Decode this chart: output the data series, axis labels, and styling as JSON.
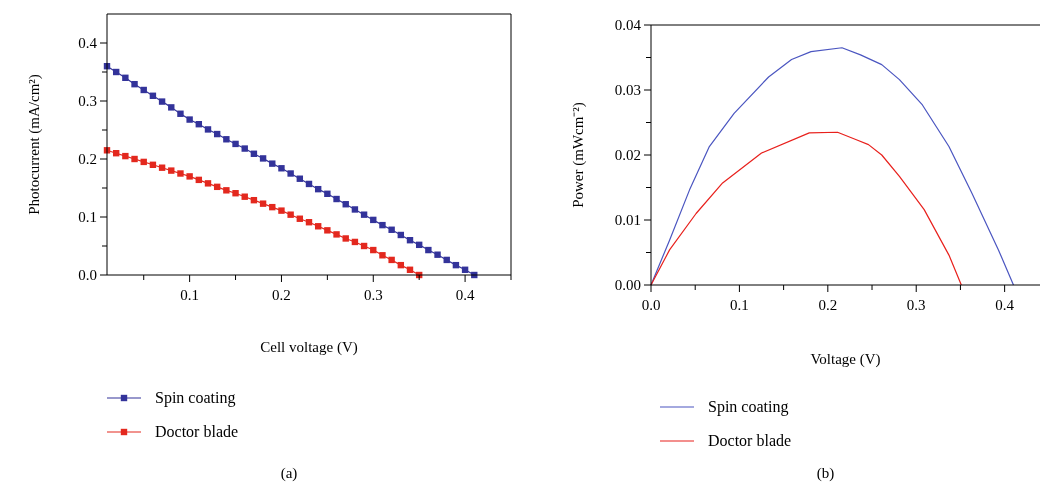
{
  "chart_data": [
    {
      "type": "line",
      "xlabel": "Cell voltage (V)",
      "ylabel": "Photocurrent (mA/cm²)",
      "annotations": [
        "(a)"
      ],
      "legend": "bottom",
      "marker": "square",
      "line_style": "solid",
      "grid": false,
      "xlim": [
        0.01,
        0.45
      ],
      "ylim": [
        0,
        0.45
      ],
      "xticks": [
        {
          "value": 0.05,
          "label": null
        },
        0.1,
        {
          "value": 0.15,
          "label": null
        },
        0.2,
        {
          "value": 0.25,
          "label": null
        },
        0.3,
        {
          "value": 0.35,
          "label": null
        },
        0.4,
        {
          "value": 0.45,
          "label": null
        }
      ],
      "yticks": [
        {
          "value": 0,
          "label": "0.0"
        },
        {
          "value": 0.05,
          "label": null
        },
        0.1,
        {
          "value": 0.15,
          "label": null
        },
        0.2,
        {
          "value": 0.25,
          "label": null
        },
        0.3,
        {
          "value": 0.35,
          "label": null
        },
        0.4
      ],
      "series": [
        {
          "name": "Spin coating",
          "color": "#33339a",
          "x": [
            0.01,
            0.02,
            0.03,
            0.04,
            0.05,
            0.06,
            0.07,
            0.08,
            0.09,
            0.1,
            0.11,
            0.12,
            0.13,
            0.14,
            0.15,
            0.16,
            0.17,
            0.18,
            0.19,
            0.2,
            0.21,
            0.22,
            0.23,
            0.24,
            0.25,
            0.26,
            0.27,
            0.28,
            0.29,
            0.3,
            0.31,
            0.32,
            0.33,
            0.34,
            0.35,
            0.36,
            0.37,
            0.38,
            0.39,
            0.4,
            0.41
          ],
          "values": [
            0.36,
            0.35,
            0.34,
            0.329,
            0.319,
            0.309,
            0.299,
            0.289,
            0.278,
            0.268,
            0.26,
            0.251,
            0.243,
            0.234,
            0.226,
            0.218,
            0.209,
            0.201,
            0.192,
            0.184,
            0.175,
            0.166,
            0.157,
            0.148,
            0.14,
            0.131,
            0.122,
            0.113,
            0.104,
            0.095,
            0.086,
            0.078,
            0.069,
            0.06,
            0.052,
            0.043,
            0.035,
            0.026,
            0.017,
            0.009,
            0.0
          ]
        },
        {
          "name": "Doctor blade",
          "color": "#e3281e",
          "x": [
            0.01,
            0.02,
            0.03,
            0.04,
            0.05,
            0.06,
            0.07,
            0.08,
            0.09,
            0.1,
            0.11,
            0.12,
            0.13,
            0.14,
            0.15,
            0.16,
            0.17,
            0.18,
            0.19,
            0.2,
            0.21,
            0.22,
            0.23,
            0.24,
            0.25,
            0.26,
            0.27,
            0.28,
            0.29,
            0.3,
            0.31,
            0.32,
            0.33,
            0.34,
            0.35
          ],
          "values": [
            0.215,
            0.21,
            0.205,
            0.2,
            0.195,
            0.19,
            0.185,
            0.18,
            0.175,
            0.17,
            0.164,
            0.158,
            0.152,
            0.146,
            0.141,
            0.135,
            0.129,
            0.123,
            0.117,
            0.111,
            0.104,
            0.097,
            0.091,
            0.084,
            0.077,
            0.07,
            0.063,
            0.057,
            0.05,
            0.043,
            0.034,
            0.026,
            0.017,
            0.009,
            0.0
          ]
        }
      ]
    },
    {
      "type": "line",
      "xlabel": "Voltage (V)",
      "ylabel": "Power (mWcm⁻²)",
      "annotations": [
        "(b)"
      ],
      "legend": "bottom",
      "marker": "none",
      "line_style": "solid",
      "grid": false,
      "xlim": [
        0,
        0.44
      ],
      "ylim": [
        0,
        0.04
      ],
      "xticks": [
        {
          "value": 0.0,
          "label": "0.0"
        },
        {
          "value": 0.05,
          "label": null
        },
        0.1,
        {
          "value": 0.15,
          "label": null
        },
        0.2,
        {
          "value": 0.25,
          "label": null
        },
        0.3,
        {
          "value": 0.35,
          "label": null
        },
        0.4
      ],
      "yticks": [
        {
          "value": 0,
          "label": "0.00"
        },
        {
          "value": 0.005,
          "label": null
        },
        {
          "value": 0.01,
          "label": "0.01"
        },
        {
          "value": 0.015,
          "label": null
        },
        {
          "value": 0.02,
          "label": "0.02"
        },
        {
          "value": 0.025,
          "label": null
        },
        {
          "value": 0.03,
          "label": "0.03"
        },
        {
          "value": 0.035,
          "label": null
        },
        {
          "value": 0.04,
          "label": "0.04"
        }
      ],
      "series": [
        {
          "name": "Spin coating",
          "color": "#4a55c0",
          "x": [
            0,
            0.021,
            0.0435,
            0.066,
            0.094,
            0.133,
            0.159,
            0.181,
            0.216,
            0.237,
            0.261,
            0.281,
            0.307,
            0.337,
            0.363,
            0.393,
            0.41
          ],
          "values": [
            0,
            0.0069,
            0.0146,
            0.0213,
            0.0264,
            0.032,
            0.0347,
            0.0359,
            0.0365,
            0.0354,
            0.0339,
            0.0316,
            0.0277,
            0.0213,
            0.0141,
            0.0054,
            0
          ]
        },
        {
          "name": "Doctor blade",
          "color": "#e8201c",
          "x": [
            0,
            0.021,
            0.051,
            0.081,
            0.125,
            0.179,
            0.211,
            0.233,
            0.246,
            0.261,
            0.281,
            0.309,
            0.337,
            0.351
          ],
          "values": [
            0,
            0.0054,
            0.011,
            0.0157,
            0.0203,
            0.0234,
            0.0235,
            0.0223,
            0.0216,
            0.02,
            0.0167,
            0.0116,
            0.0046,
            0
          ]
        }
      ]
    }
  ]
}
